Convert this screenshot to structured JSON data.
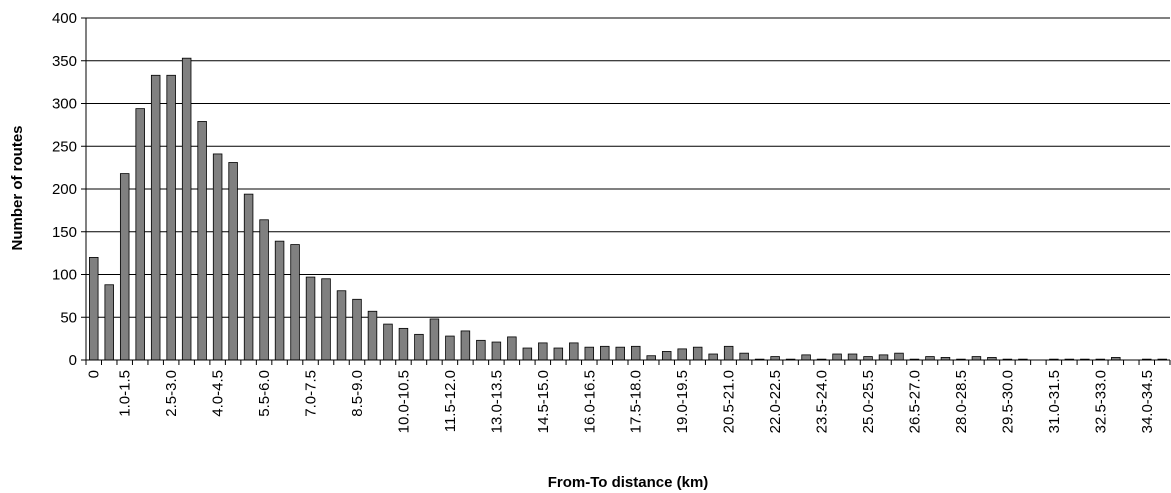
{
  "chart_data": {
    "type": "bar",
    "xlabel": "From-To distance (km)",
    "ylabel": "Number of routes",
    "ylim": [
      0,
      400
    ],
    "yticks": [
      0,
      50,
      100,
      150,
      200,
      250,
      300,
      350,
      400
    ],
    "grid": "horizontal",
    "bar_color": "#808080",
    "categories": [
      "0",
      "0.5-1.0",
      "1.0-1.5",
      "1.5-2.0",
      "2.0-2.5",
      "2.5-3.0",
      "3.0-3.5",
      "3.5-4.0",
      "4.0-4.5",
      "4.5-5.0",
      "5.0-5.5",
      "5.5-6.0",
      "6.0-6.5",
      "6.5-7.0",
      "7.0-7.5",
      "7.5-8.0",
      "8.0-8.5",
      "8.5-9.0",
      "9.0-9.5",
      "9.5-10.0",
      "10.0-10.5",
      "10.5-11.0",
      "11.0-11.5",
      "11.5-12.0",
      "12.0-12.5",
      "12.5-13.0",
      "13.0-13.5",
      "13.5-14.0",
      "14.0-14.5",
      "14.5-15.0",
      "15.0-15.5",
      "15.5-16.0",
      "16.0-16.5",
      "16.5-17.0",
      "17.0-17.5",
      "17.5-18.0",
      "18.0-18.5",
      "18.5-19.0",
      "19.0-19.5",
      "19.5-20.0",
      "20.0-20.5",
      "20.5-21.0",
      "21.0-21.5",
      "21.5-22.0",
      "22.0-22.5",
      "22.5-23.0",
      "23.0-23.5",
      "23.5-24.0",
      "24.0-24.5",
      "24.5-25.0",
      "25.0-25.5",
      "25.5-26.0",
      "26.0-26.5",
      "26.5-27.0",
      "27.0-27.5",
      "27.5-28.0",
      "28.0-28.5",
      "28.5-29.0",
      "29.0-29.5",
      "29.5-30.0",
      "30.0-30.5",
      "30.5-31.0",
      "31.0-31.5",
      "31.5-32.0",
      "32.0-32.5",
      "32.5-33.0",
      "33.0-33.5",
      "33.5-34.0",
      "34.0-34.5",
      "34.5-35.0"
    ],
    "tick_labels": [
      "0",
      "",
      "1.0-1.5",
      "",
      "",
      "2.5-3.0",
      "",
      "",
      "4.0-4.5",
      "",
      "",
      "5.5-6.0",
      "",
      "",
      "7.0-7.5",
      "",
      "",
      "8.5-9.0",
      "",
      "",
      "10.0-10.5",
      "",
      "",
      "11.5-12.0",
      "",
      "",
      "13.0-13.5",
      "",
      "",
      "14.5-15.0",
      "",
      "",
      "16.0-16.5",
      "",
      "",
      "17.5-18.0",
      "",
      "",
      "19.0-19.5",
      "",
      "",
      "20.5-21.0",
      "",
      "",
      "22.0-22.5",
      "",
      "",
      "23.5-24.0",
      "",
      "",
      "25.0-25.5",
      "",
      "",
      "26.5-27.0",
      "",
      "",
      "28.0-28.5",
      "",
      "",
      "29.5-30.0",
      "",
      "",
      "31.0-31.5",
      "",
      "",
      "32.5-33.0",
      "",
      "",
      "34.0-34.5",
      ""
    ],
    "values": [
      120,
      88,
      218,
      294,
      333,
      333,
      353,
      279,
      241,
      231,
      194,
      164,
      139,
      135,
      97,
      95,
      81,
      71,
      57,
      42,
      37,
      30,
      48,
      28,
      34,
      23,
      21,
      27,
      14,
      20,
      14,
      20,
      15,
      16,
      15,
      16,
      5,
      10,
      13,
      15,
      7,
      16,
      8,
      1,
      4,
      1,
      6,
      1,
      7,
      7,
      4,
      6,
      8,
      1,
      4,
      3,
      1,
      4,
      3,
      1,
      1,
      0,
      1,
      1,
      1,
      1,
      3,
      0,
      1,
      1
    ]
  }
}
